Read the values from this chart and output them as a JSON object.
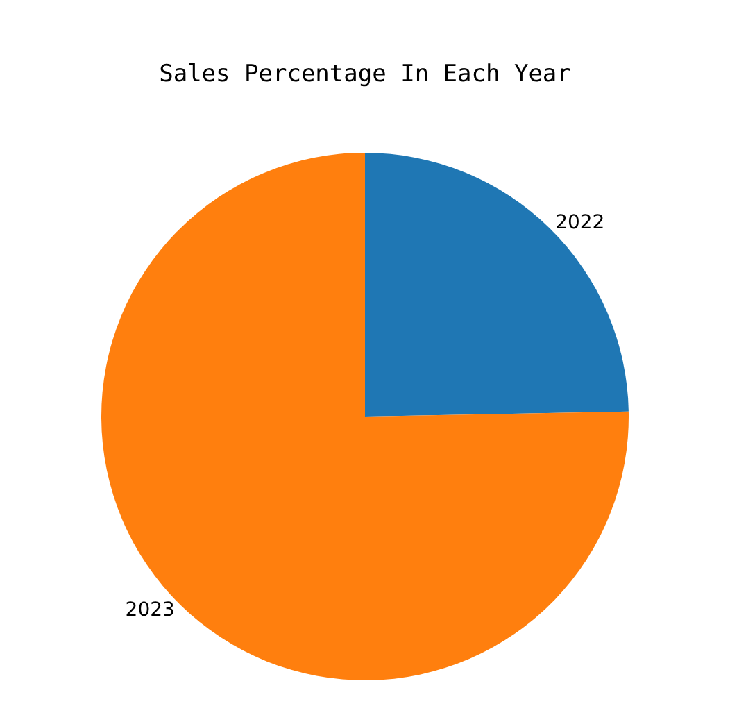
{
  "chart_data": {
    "type": "pie",
    "title": "Sales Percentage In Each Year",
    "categories": [
      "2022",
      "2023"
    ],
    "values": [
      24.7,
      75.3
    ],
    "colors": [
      "#1f77b4",
      "#ff7f0e"
    ],
    "legend": false
  }
}
